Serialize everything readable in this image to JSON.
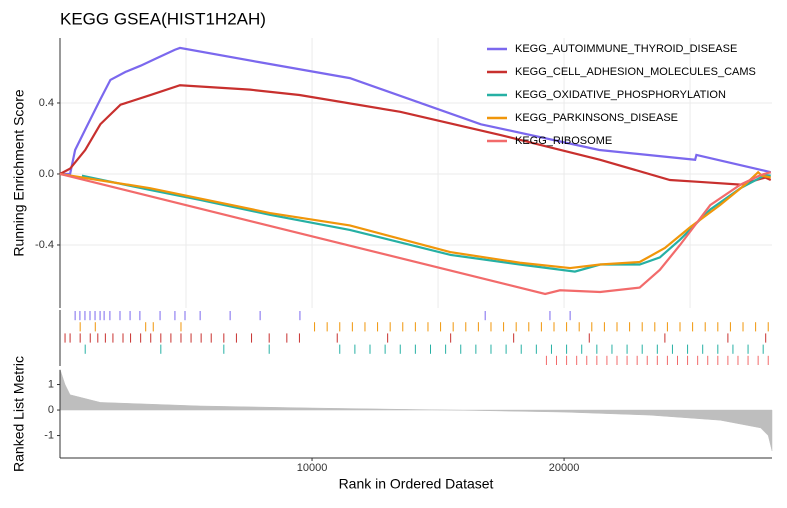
{
  "chart_data": [
    {
      "type": "line",
      "title": "KEGG GSEA(HIST1H2AH)",
      "ylabel": "Running Enrichment Score",
      "xlim": [
        0,
        28250
      ],
      "ylim": [
        -0.755,
        0.766
      ],
      "yticks": [
        {
          "value": -0.4,
          "label": "-0.4"
        },
        {
          "value": 0,
          "label": "0.0"
        },
        {
          "value": 0.4,
          "label": "0.4"
        }
      ],
      "xgrid": [
        5000,
        10000,
        15000,
        20000,
        25000
      ],
      "grid": true,
      "legend": "top-right",
      "series": [
        {
          "name": "KEGG_AUTOIMMUNE_THYROID_DISEASE",
          "color": "#7b68ee",
          "x": [
            0,
            400,
            600,
            1000,
            1600,
            2000,
            2600,
            3200,
            3800,
            4560,
            4760,
            7900,
            11500,
            16700,
            21400,
            25200,
            25250,
            28200
          ],
          "values": [
            0,
            0,
            0.135,
            0.25,
            0.42,
            0.53,
            0.575,
            0.61,
            0.65,
            0.7,
            0.71,
            0.63,
            0.54,
            0.28,
            0.135,
            0.08,
            0.107,
            0.01
          ]
        },
        {
          "name": "KEGG_CELL_ADHESION_MOLECULES_CAMS",
          "color": "#c8302e",
          "x": [
            0,
            400,
            1000,
            1600,
            2400,
            3600,
            4760,
            7540,
            9500,
            13500,
            17460,
            21430,
            24200,
            25400,
            27000,
            27980,
            28200
          ],
          "values": [
            0,
            0.03,
            0.135,
            0.28,
            0.39,
            0.445,
            0.5,
            0.475,
            0.445,
            0.35,
            0.22,
            0.08,
            -0.034,
            -0.045,
            -0.06,
            -0.02,
            -0.034
          ]
        },
        {
          "name": "KEGG_OXIDATIVE_PHOSPHORYLATION",
          "color": "#26b0a4",
          "x": [
            870,
            3570,
            5560,
            8330,
            11500,
            15500,
            18250,
            20430,
            21430,
            23000,
            23800,
            24600,
            25800,
            27000,
            27980,
            28200
          ],
          "values": [
            -0.01,
            -0.09,
            -0.146,
            -0.23,
            -0.315,
            -0.456,
            -0.51,
            -0.55,
            -0.51,
            -0.51,
            -0.47,
            -0.37,
            -0.2,
            -0.08,
            -0.006,
            -0.01
          ]
        },
        {
          "name": "KEGG_PARKINSONS_DISEASE",
          "color": "#f0960a",
          "x": [
            0,
            3570,
            8330,
            11500,
            15480,
            18250,
            20240,
            21430,
            23000,
            24000,
            25000,
            26190,
            27180,
            27700,
            27850,
            28200
          ],
          "values": [
            0,
            -0.08,
            -0.22,
            -0.29,
            -0.44,
            -0.5,
            -0.53,
            -0.51,
            -0.496,
            -0.417,
            -0.3,
            -0.175,
            -0.06,
            0.01,
            -0.01,
            -0.02
          ]
        },
        {
          "name": "KEGG_RIBOSOME",
          "color": "#f26b6b",
          "x": [
            0,
            19250,
            19840,
            21430,
            23000,
            23800,
            24600,
            25800,
            27000,
            27800,
            28200
          ],
          "values": [
            0,
            -0.676,
            -0.655,
            -0.665,
            -0.64,
            -0.54,
            -0.4,
            -0.175,
            -0.06,
            -0.006,
            0.01
          ]
        }
      ]
    },
    {
      "type": "rug",
      "xlim": [
        0,
        28250
      ],
      "series": [
        {
          "color": "#7b68ee",
          "x": [
            600,
            790,
            990,
            1190,
            1390,
            1590,
            1750,
            1980,
            2380,
            2780,
            3170,
            3970,
            4560,
            4960,
            5560,
            6750,
            7940,
            9520,
            16870,
            19440,
            20240
          ]
        },
        {
          "color": "#f0960a",
          "x": [
            800,
            1400,
            3400,
            3700,
            4800,
            10100,
            10600,
            11100,
            11600,
            12100,
            12600,
            13100,
            13600,
            14100,
            14600,
            15100,
            15600,
            16100,
            16600,
            17100,
            17600,
            18100,
            18600,
            19100,
            19600,
            20100,
            20600,
            21100,
            21600,
            22100,
            22600,
            23100,
            23600,
            24100,
            24600,
            25100,
            25600,
            26100,
            26600,
            27100,
            27600,
            28100
          ]
        },
        {
          "color": "#c8302e",
          "x": [
            200,
            400,
            800,
            1200,
            1500,
            1800,
            2100,
            2500,
            2800,
            3200,
            3600,
            4000,
            4400,
            4800,
            5200,
            5600,
            6000,
            6500,
            7000,
            7600,
            8300,
            9000,
            9500,
            11000,
            13000,
            15500,
            18000,
            21000,
            24000,
            26500,
            28000
          ]
        },
        {
          "color": "#26b0a4",
          "x": [
            1000,
            4000,
            6500,
            8300,
            11100,
            11700,
            12300,
            12900,
            13500,
            14100,
            14700,
            15300,
            15900,
            16500,
            17100,
            17700,
            18300,
            18900,
            19500,
            20100,
            20700,
            21300,
            21900,
            22500,
            23100,
            23700,
            24300,
            24900,
            25500,
            26100,
            26700,
            27300,
            27900
          ]
        },
        {
          "color": "#f26b6b",
          "x": [
            19300,
            19700,
            20100,
            20500,
            20900,
            21300,
            21700,
            22100,
            22500,
            22900,
            23300,
            23700,
            24100,
            24500,
            24900,
            25300,
            25700,
            26100,
            26500,
            26900,
            27300,
            27700,
            28100
          ]
        }
      ]
    },
    {
      "type": "area",
      "ylabel": "Ranked List Metric",
      "xlabel": "Rank in Ordered Dataset",
      "color": "#bebebe",
      "xlim": [
        0,
        28250
      ],
      "ylim": [
        -1.88,
        1.57
      ],
      "yticks": [
        -1,
        0,
        1
      ],
      "xticks": [
        10000,
        20000
      ],
      "x": [
        0,
        200,
        400,
        1600,
        5560,
        10000,
        15500,
        20000,
        23400,
        26200,
        27800,
        28100,
        28250
      ],
      "values": [
        1.6,
        1.0,
        0.6,
        0.3,
        0.16,
        0.08,
        0,
        -0.08,
        -0.2,
        -0.4,
        -0.7,
        -1.0,
        -1.6
      ]
    }
  ]
}
